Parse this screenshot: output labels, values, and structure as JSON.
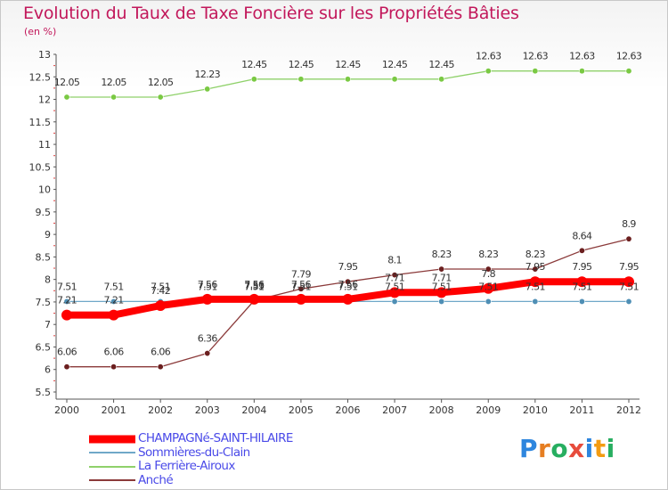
{
  "chart_data": {
    "type": "line",
    "title": "Evolution du Taux de Taxe Foncière sur les Propriétés Bâties",
    "unit_label": "(en %)",
    "xlabel": "",
    "ylabel": "",
    "ylim": [
      5.5,
      13
    ],
    "y_ticks": [
      "5.5",
      "6",
      "6.5",
      "7",
      "7.5",
      "8",
      "8.5",
      "9",
      "9.5",
      "10",
      "10.5",
      "11",
      "11.5",
      "12",
      "12.5",
      "13"
    ],
    "categories": [
      "2000",
      "2001",
      "2002",
      "2003",
      "2004",
      "2005",
      "2006",
      "2007",
      "2008",
      "2009",
      "2010",
      "2011",
      "2012"
    ],
    "series": [
      {
        "name": "CHAMPAGNé-SAINT-HILAIRE",
        "color": "#ff0000",
        "values": [
          7.21,
          7.21,
          7.42,
          7.56,
          7.56,
          7.56,
          7.56,
          7.71,
          7.71,
          7.8,
          7.95,
          7.95,
          7.95
        ],
        "labels": [
          "7.21",
          "7.21",
          "7.42",
          "7.56",
          "7.56",
          "7.56",
          "7.56",
          "7.71",
          "7.71",
          "7.8",
          "7.95",
          "7.95",
          "7.95"
        ]
      },
      {
        "name": "Sommières-du-Clain",
        "color": "#6fa8c8",
        "values": [
          7.51,
          7.51,
          7.51,
          7.51,
          7.51,
          7.51,
          7.51,
          7.51,
          7.51,
          7.51,
          7.51,
          7.51,
          7.51
        ],
        "labels": [
          "7.51",
          "7.51",
          "7.51",
          "7.51",
          "7.51",
          "7.51",
          "7.51",
          "7.51",
          "7.51",
          "7.51",
          "7.51",
          "7.51",
          "7.51"
        ]
      },
      {
        "name": "La Ferrière-Airoux",
        "color": "#8fd16a",
        "values": [
          12.05,
          12.05,
          12.05,
          12.23,
          12.45,
          12.45,
          12.45,
          12.45,
          12.45,
          12.63,
          12.63,
          12.63,
          12.63
        ],
        "labels": [
          "12.05",
          "12.05",
          "12.05",
          "12.23",
          "12.45",
          "12.45",
          "12.45",
          "12.45",
          "12.45",
          "12.63",
          "12.63",
          "12.63",
          "12.63"
        ]
      },
      {
        "name": "Anché",
        "color": "#8b3a3a",
        "values": [
          6.06,
          6.06,
          6.06,
          6.36,
          7.53,
          7.79,
          7.95,
          8.1,
          8.23,
          8.23,
          8.23,
          8.64,
          8.9
        ],
        "labels": [
          "6.06",
          "6.06",
          "6.06",
          "6.36",
          "7.53",
          "7.79",
          "7.95",
          "8.1",
          "8.23",
          "8.23",
          "8.23",
          "8.64",
          "8.9"
        ]
      }
    ],
    "legend_position": "bottom-left",
    "grid": false
  },
  "logo_text": [
    "P",
    "r",
    "o",
    "x",
    "i",
    "t",
    "i"
  ],
  "logo_colors": [
    "#2e86de",
    "#e67e22",
    "#27ae60",
    "#e74c3c",
    "#2e86de",
    "#f39c12",
    "#27ae60"
  ]
}
